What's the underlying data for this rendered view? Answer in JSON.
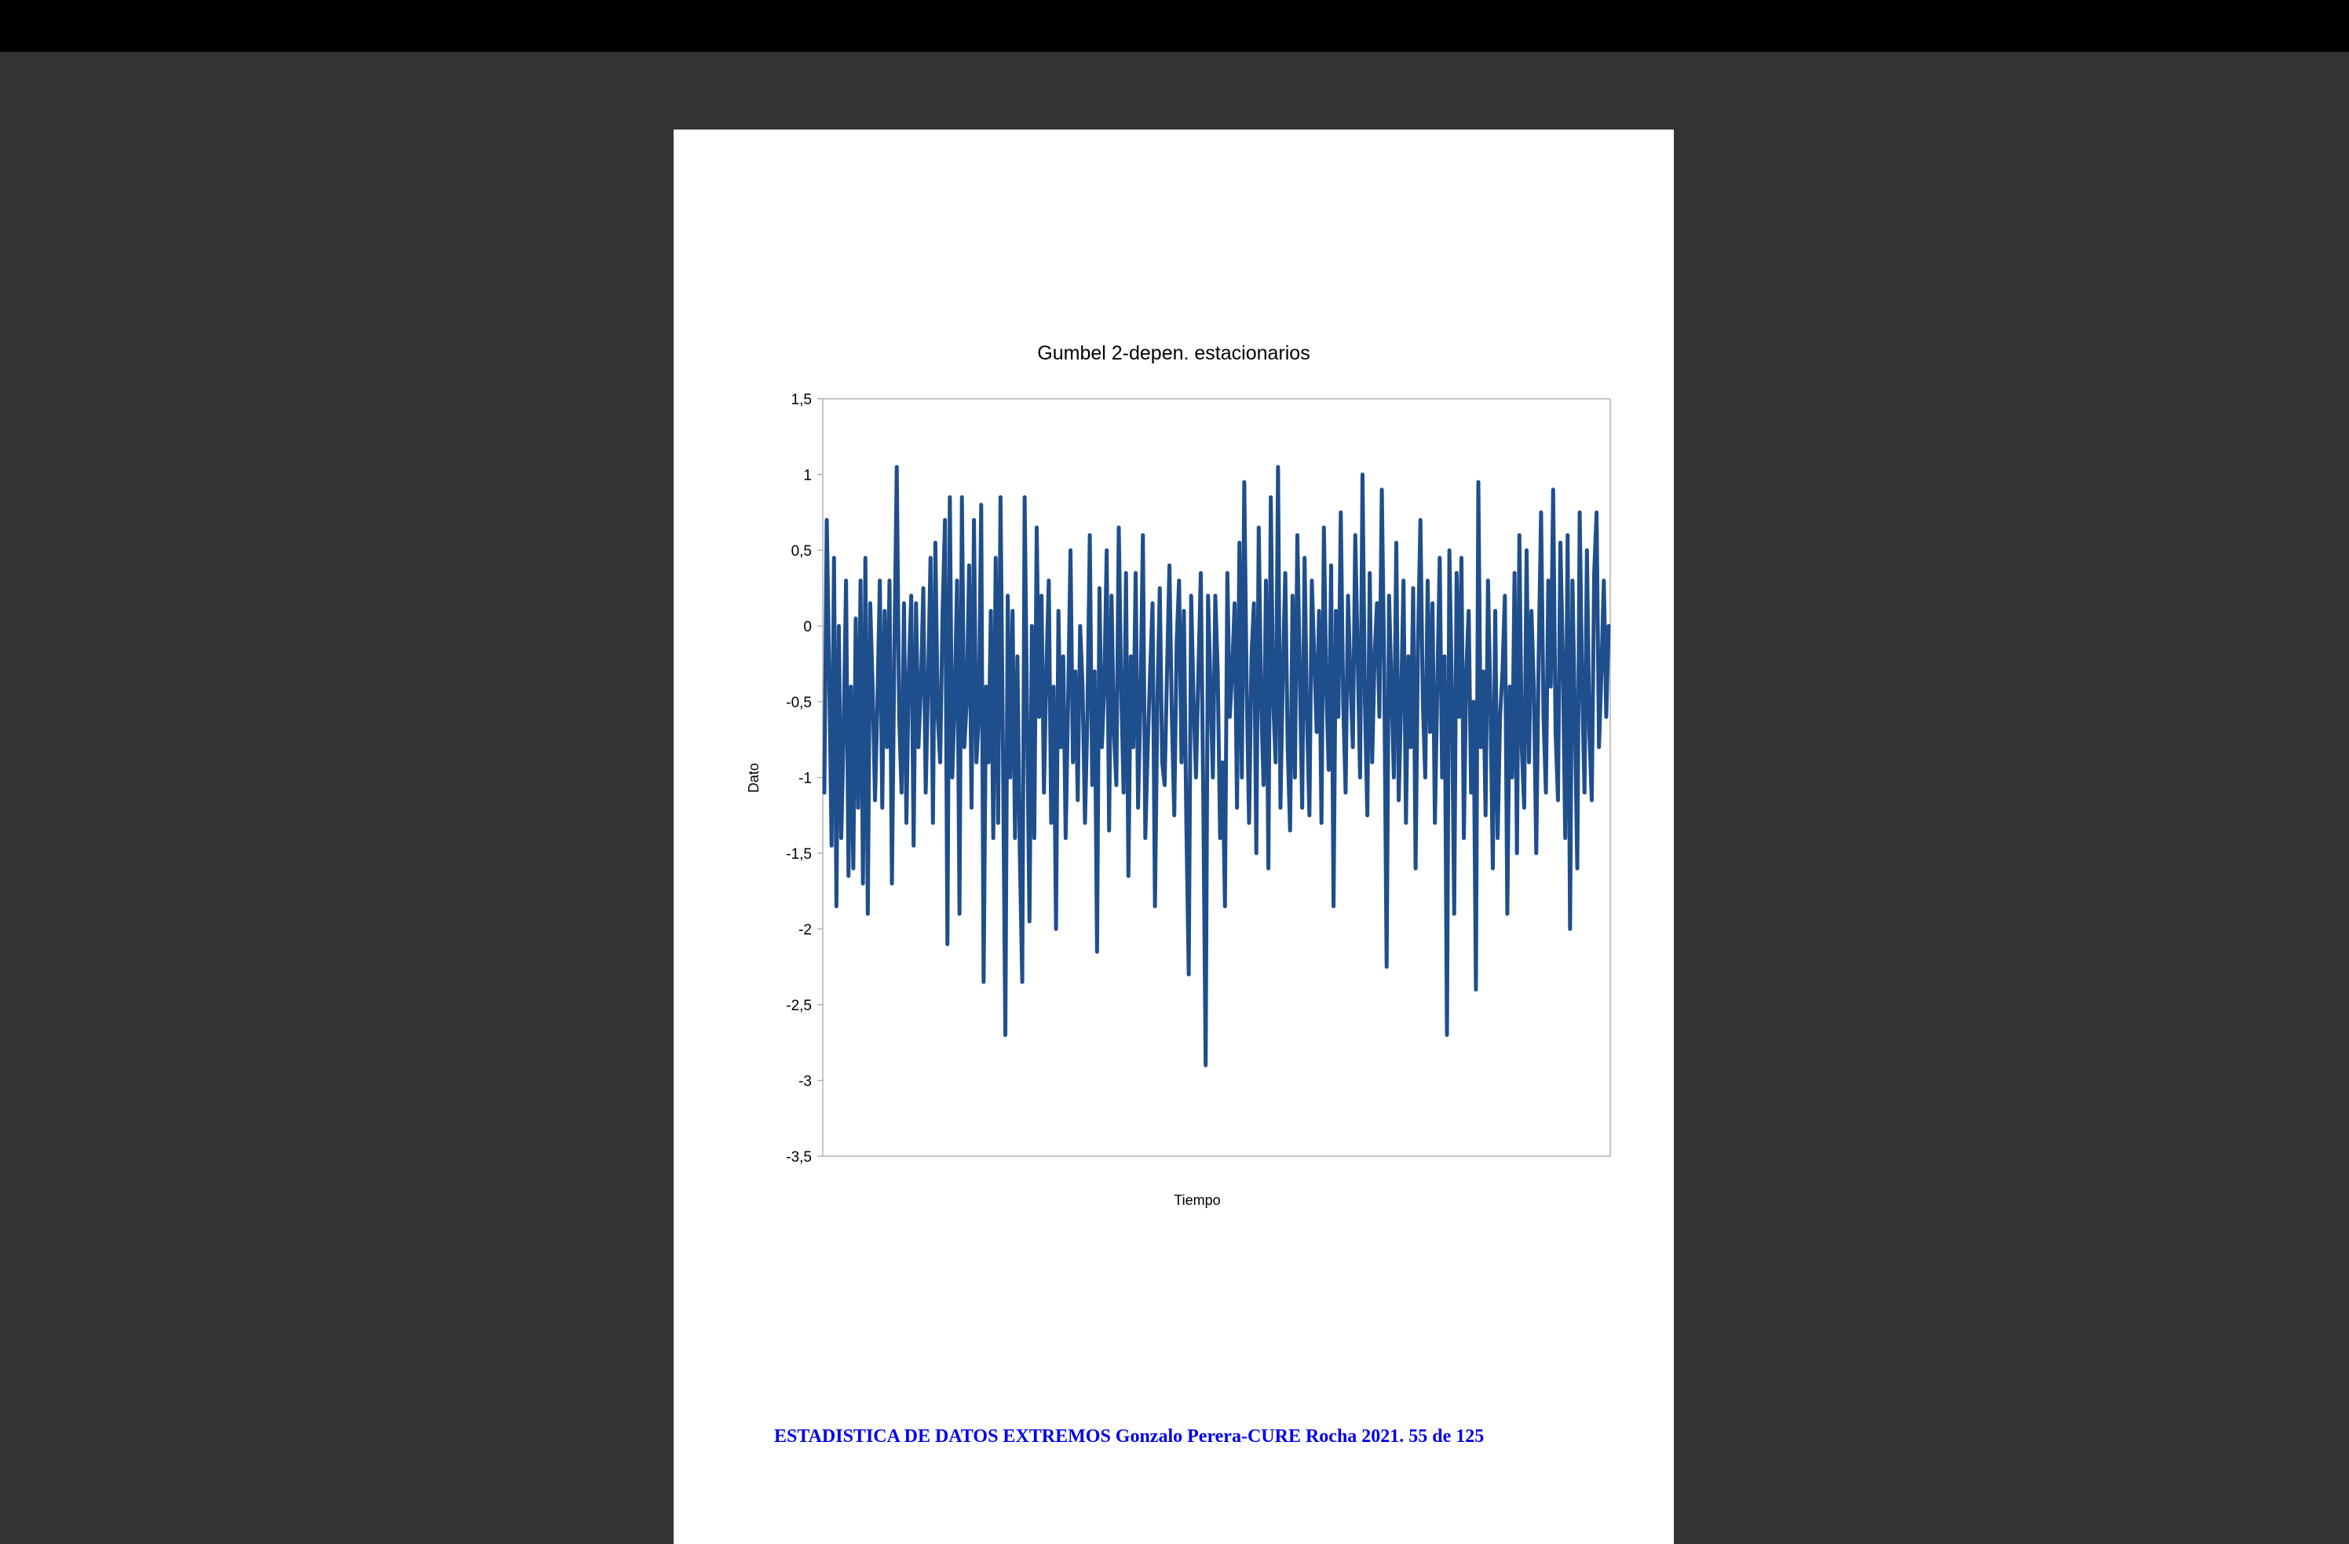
{
  "footer": {
    "text": "ESTADISTICA DE DATOS EXTREMOS Gonzalo Perera-CURE Rocha 2021. 55 de 125",
    "color": "#0000ee"
  },
  "chart_data": {
    "type": "line",
    "title": "Gumbel 2-depen. estacionarios",
    "xlabel": "Tiempo",
    "ylabel": "Dato",
    "ylim": [
      -3.5,
      1.5
    ],
    "yticks": [
      1.5,
      1,
      0.5,
      0,
      -0.5,
      -1,
      -1.5,
      -2,
      -2.5,
      -3,
      -3.5
    ],
    "ytick_labels": [
      "1,5",
      "1",
      "0,5",
      "0",
      "-0,5",
      "-1",
      "-1,5",
      "-2",
      "-2,5",
      "-3",
      "-3,5"
    ],
    "grid": false,
    "legend": "none",
    "line_color": "#1f4e8c",
    "series": [
      {
        "values": [
          -1.1,
          0.7,
          -0.3,
          -1.45,
          0.45,
          -1.85,
          0.0,
          -1.4,
          -0.7,
          0.3,
          -1.65,
          -0.4,
          -1.6,
          0.05,
          -1.2,
          0.3,
          -1.7,
          0.45,
          -1.9,
          0.15,
          -0.4,
          -1.15,
          -0.5,
          0.3,
          -1.2,
          0.1,
          -0.8,
          0.3,
          -1.7,
          -0.2,
          1.05,
          -0.6,
          -1.1,
          0.15,
          -1.3,
          -0.3,
          0.2,
          -1.45,
          0.15,
          -0.8,
          -0.4,
          0.25,
          -1.1,
          -0.35,
          0.45,
          -1.3,
          0.55,
          -0.6,
          -0.9,
          0.1,
          0.7,
          -2.1,
          0.85,
          -1.0,
          -0.5,
          0.3,
          -1.9,
          0.85,
          -0.8,
          -0.5,
          0.4,
          -1.2,
          0.7,
          -0.9,
          -0.6,
          0.8,
          -2.35,
          -0.4,
          -0.9,
          0.1,
          -1.4,
          0.45,
          -1.3,
          0.85,
          -0.8,
          -2.7,
          0.2,
          -1.0,
          0.1,
          -1.4,
          -0.2,
          -1.5,
          -2.35,
          0.85,
          -0.6,
          -1.95,
          0.0,
          -1.4,
          0.65,
          -0.6,
          0.2,
          -1.1,
          -0.3,
          0.3,
          -1.3,
          -0.4,
          -2.0,
          0.1,
          -0.8,
          -0.2,
          -1.4,
          -0.5,
          0.5,
          -0.9,
          -0.3,
          -1.15,
          0.0,
          -0.4,
          -1.3,
          -0.6,
          0.6,
          -1.05,
          -0.3,
          -2.15,
          0.25,
          -0.8,
          -0.4,
          0.5,
          -1.35,
          0.2,
          -0.7,
          -1.05,
          0.65,
          -0.4,
          -1.1,
          0.35,
          -1.65,
          -0.2,
          -0.8,
          0.35,
          -1.2,
          -0.5,
          0.6,
          -1.4,
          -0.8,
          -0.3,
          0.15,
          -1.85,
          -0.5,
          0.25,
          -0.9,
          -1.05,
          -0.3,
          0.4,
          -0.6,
          -1.25,
          -0.1,
          0.3,
          -0.9,
          0.1,
          -1.3,
          -2.3,
          0.2,
          -0.5,
          -1.0,
          -0.3,
          0.35,
          -1.1,
          -2.9,
          0.2,
          -0.4,
          -1.0,
          0.2,
          -0.3,
          -1.4,
          -0.9,
          -1.85,
          0.35,
          -0.6,
          -0.3,
          0.15,
          -1.2,
          0.55,
          -1.0,
          0.95,
          -0.4,
          -1.3,
          -0.2,
          0.15,
          -1.5,
          0.65,
          -0.5,
          -1.05,
          0.3,
          -1.6,
          0.85,
          -0.5,
          -0.9,
          1.05,
          -1.2,
          -0.3,
          0.35,
          -0.8,
          -1.35,
          0.2,
          -1.0,
          0.6,
          -0.3,
          -1.2,
          0.45,
          -0.6,
          -1.25,
          0.3,
          -0.2,
          -0.7,
          0.1,
          -1.3,
          0.65,
          -0.4,
          -0.95,
          0.4,
          -1.85,
          0.1,
          -0.6,
          0.75,
          -0.5,
          -1.1,
          0.2,
          -0.35,
          -0.8,
          0.6,
          -0.2,
          -1.0,
          1.0,
          -0.5,
          -1.25,
          0.35,
          -0.9,
          -0.2,
          0.15,
          -0.6,
          0.9,
          -0.3,
          -2.25,
          0.2,
          -0.4,
          -1.0,
          0.55,
          -1.15,
          -0.5,
          0.3,
          -1.3,
          -0.2,
          -0.8,
          0.25,
          -1.6,
          -0.1,
          0.7,
          -0.5,
          -1.0,
          0.3,
          -0.7,
          0.15,
          -1.3,
          -0.4,
          0.45,
          -1.0,
          -0.2,
          -2.7,
          0.5,
          -0.4,
          -1.9,
          0.35,
          -0.6,
          0.45,
          -1.4,
          -0.3,
          0.1,
          -1.1,
          -0.5,
          -2.4,
          0.95,
          -0.8,
          -0.3,
          -1.25,
          0.3,
          -0.5,
          -1.6,
          0.1,
          -1.4,
          -0.6,
          -0.3,
          0.2,
          -1.9,
          -0.4,
          -1.0,
          0.35,
          -1.5,
          0.6,
          -0.8,
          -1.2,
          0.5,
          -0.9,
          0.1,
          -0.4,
          -1.5,
          -0.2,
          0.75,
          -0.6,
          -1.1,
          0.3,
          -0.4,
          0.9,
          -0.7,
          -1.15,
          0.55,
          -0.2,
          -1.4,
          0.6,
          -2.0,
          0.3,
          -0.6,
          -1.6,
          0.75,
          -0.4,
          -1.1,
          0.5,
          -0.7,
          -1.15,
          0.35,
          0.75,
          -0.8,
          -0.3,
          0.3,
          -0.6,
          0.0
        ]
      }
    ]
  }
}
